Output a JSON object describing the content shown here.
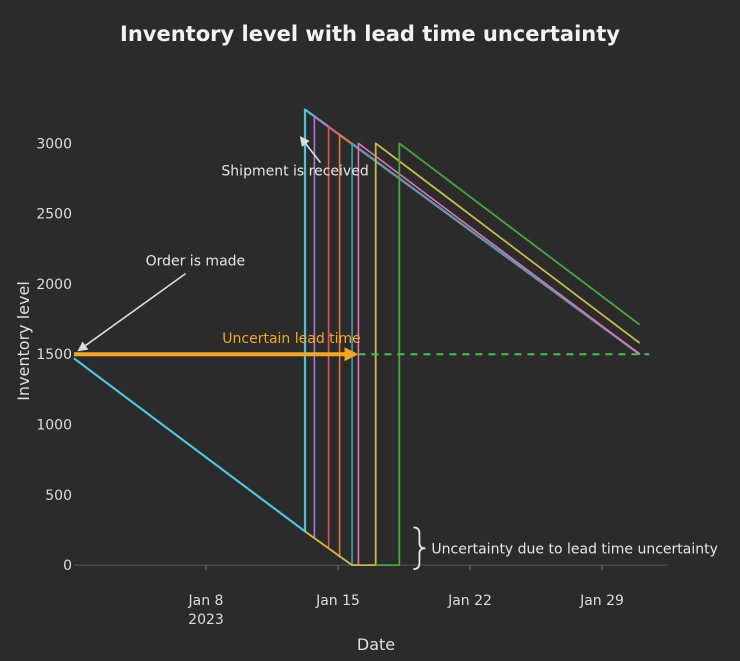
{
  "chart_data": {
    "type": "line",
    "title": "Inventory level with lead time uncertainty",
    "xlabel": "Date",
    "ylabel": "Inventory level",
    "x_ticks": [
      {
        "date": "2023-01-08",
        "label": "Jan 8",
        "sublabel": "2023"
      },
      {
        "date": "2023-01-15",
        "label": "Jan 15",
        "sublabel": ""
      },
      {
        "date": "2023-01-22",
        "label": "Jan 22",
        "sublabel": ""
      },
      {
        "date": "2023-01-29",
        "label": "Jan 29",
        "sublabel": ""
      }
    ],
    "y_ticks": [
      0,
      500,
      1000,
      1500,
      2000,
      2500,
      3000
    ],
    "xlim": [
      "2023-01-01T00:00",
      "2023-02-01T12:00"
    ],
    "ylim": [
      -120,
      3450
    ],
    "grid": false,
    "reorder_level": 1500,
    "series": [
      {
        "color": "#4fc3d9",
        "width": 2.2,
        "points": [
          [
            "2023-01-01T00:00",
            1470
          ],
          [
            "2023-01-13T06:00",
            240
          ],
          [
            "2023-01-13T06:00",
            3240
          ],
          [
            "2023-01-31T00:00",
            1500
          ]
        ]
      },
      {
        "color": "#a77bd6",
        "width": 1.6,
        "points": [
          [
            "2023-01-13T06:00",
            240
          ],
          [
            "2023-01-13T18:00",
            190
          ],
          [
            "2023-01-13T18:00",
            3190
          ],
          [
            "2023-01-31T00:00",
            1500
          ]
        ]
      },
      {
        "color": "#e0515f",
        "width": 1.6,
        "points": [
          [
            "2023-01-13T18:00",
            190
          ],
          [
            "2023-01-14T12:00",
            120
          ],
          [
            "2023-01-14T12:00",
            3120
          ],
          [
            "2023-01-31T00:00",
            1500
          ]
        ]
      },
      {
        "color": "#e07a3c",
        "width": 1.6,
        "points": [
          [
            "2023-01-14T12:00",
            120
          ],
          [
            "2023-01-15T02:00",
            60
          ],
          [
            "2023-01-15T02:00",
            3060
          ],
          [
            "2023-01-31T00:00",
            1500
          ]
        ]
      },
      {
        "color": "#3aa1b8",
        "width": 1.6,
        "points": [
          [
            "2023-01-15T02:00",
            60
          ],
          [
            "2023-01-15T18:00",
            0
          ],
          [
            "2023-01-15T18:00",
            3000
          ],
          [
            "2023-01-31T00:00",
            1500
          ]
        ]
      },
      {
        "color": "#e66fb2",
        "width": 1.6,
        "points": [
          [
            "2023-01-15T18:00",
            0
          ],
          [
            "2023-01-16T02:00",
            0
          ],
          [
            "2023-01-16T02:00",
            3000
          ],
          [
            "2023-01-31T00:00",
            1500
          ]
        ]
      },
      {
        "color": "#c8b84a",
        "width": 1.8,
        "points": [
          [
            "2023-01-13T06:00",
            240
          ],
          [
            "2023-01-15T18:00",
            0
          ],
          [
            "2023-01-17T00:00",
            0
          ],
          [
            "2023-01-17T00:00",
            3000
          ],
          [
            "2023-01-31T00:00",
            1580
          ]
        ]
      },
      {
        "color": "#46a843",
        "width": 1.8,
        "points": [
          [
            "2023-01-17T00:00",
            0
          ],
          [
            "2023-01-18T06:00",
            0
          ],
          [
            "2023-01-18T06:00",
            3000
          ],
          [
            "2023-01-31T00:00",
            1710
          ]
        ]
      }
    ],
    "lead_time_arrow": {
      "from": [
        "2023-01-01T00:00",
        1500
      ],
      "to": [
        "2023-01-16T02:00",
        1500
      ],
      "color": "#f5a623"
    },
    "reorder_dashed_line": {
      "from": [
        "2023-01-16T02:00",
        1500
      ],
      "to": [
        "2023-01-31T12:00",
        1500
      ],
      "color": "#46c246"
    },
    "annotations": {
      "order": {
        "text": "Order is made",
        "point": [
          "2023-01-01T00:00",
          1500
        ],
        "text_at": [
          "2023-01-04T00:00",
          2130
        ]
      },
      "shipment": {
        "text": "Shipment is received",
        "point": [
          "2023-01-13T06:00",
          3040
        ],
        "text_at": [
          "2023-01-08T12:00",
          2770
        ]
      },
      "lead_time": {
        "text": "Uncertain lead time",
        "text_at": [
          "2023-01-09T12:00",
          1580
        ]
      },
      "brace": {
        "text": "Uncertainty due to lead time uncertainty",
        "y_range": [
          0,
          240
        ],
        "x": "2023-01-19T00:00"
      }
    }
  }
}
